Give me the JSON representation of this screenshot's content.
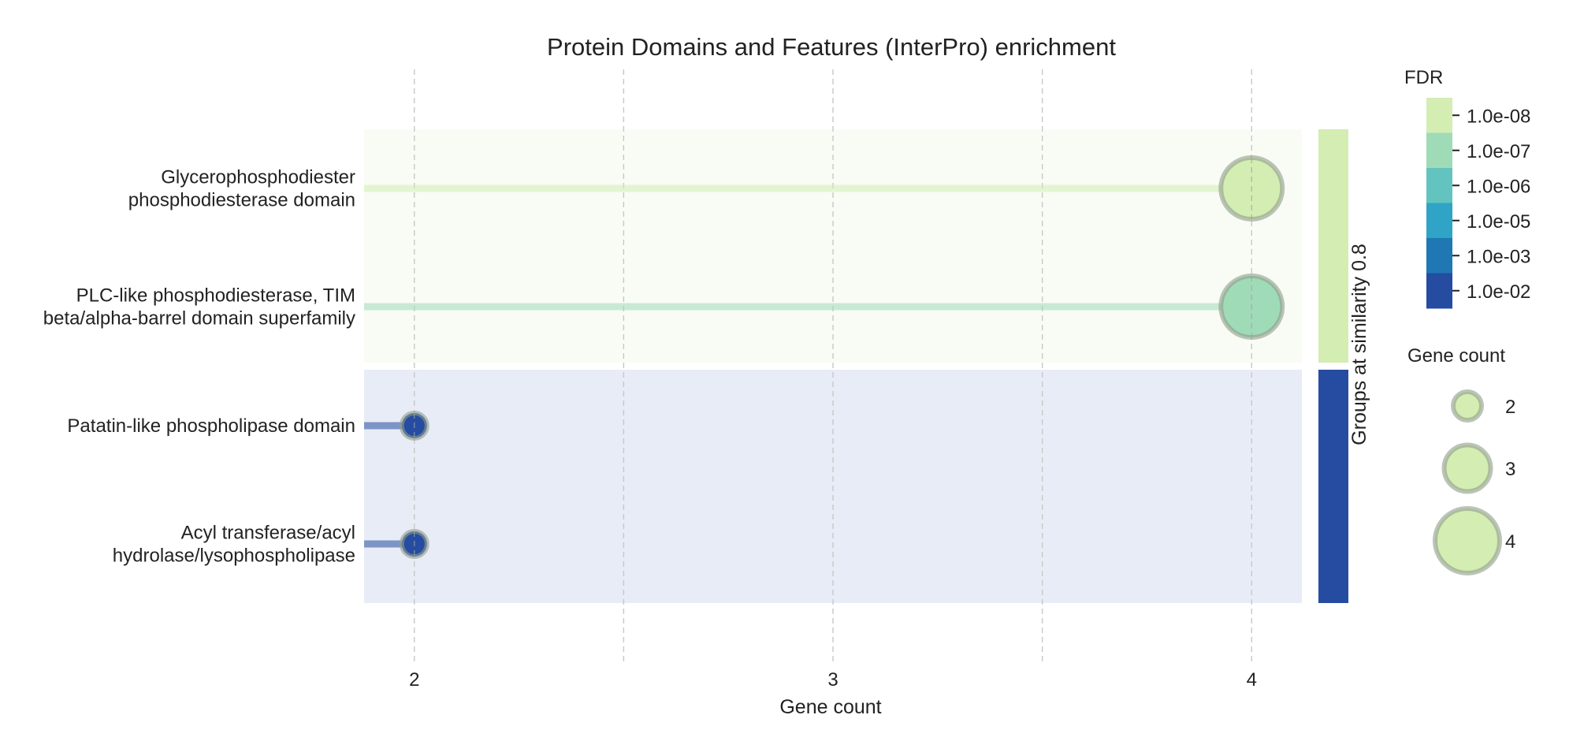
{
  "chart_data": {
    "type": "scatter",
    "title": "Protein Domains and Features (InterPro) enrichment",
    "xlabel": "Gene count",
    "ylabel": "",
    "xlim": [
      1.88,
      4.12
    ],
    "xticks": [
      2,
      3,
      4
    ],
    "grid": "x-dashed",
    "points": [
      {
        "term": "Glycerophosphodiester phosphodiesterase domain",
        "lines": [
          "Glycerophosphodiester",
          "phosphodiesterase domain"
        ],
        "gene_count": 4,
        "fdr": "1.0e-08",
        "color": "#d4edb3",
        "group": 1
      },
      {
        "term": "PLC-like phosphodiesterase, TIM beta/alpha-barrel domain superfamily",
        "lines": [
          "PLC-like phosphodiesterase, TIM",
          "beta/alpha-barrel domain superfamily"
        ],
        "gene_count": 4,
        "fdr": "1.0e-07",
        "color": "#a0dbb8",
        "group": 1
      },
      {
        "term": "Patatin-like phospholipase domain",
        "lines": [
          "Patatin-like phospholipase domain"
        ],
        "gene_count": 2,
        "fdr": "1.0e-02",
        "color": "#254ca1",
        "group": 2
      },
      {
        "term": "Acyl transferase/acyl hydrolase/lysophospholipase",
        "lines": [
          "Acyl transferase/acyl",
          "hydrolase/lysophospholipase"
        ],
        "gene_count": 2,
        "fdr": "1.0e-02",
        "color": "#254ca1",
        "group": 2
      }
    ],
    "groups": [
      {
        "id": 1,
        "color": "#d4edb3",
        "background": "#f9fcf5"
      },
      {
        "id": 2,
        "color": "#254ca1",
        "background": "#e8ecf6"
      }
    ],
    "group_axis_label": "Groups at similarity 0.8",
    "fdr_legend": {
      "title": "FDR",
      "entries": [
        {
          "label": "1.0e-08",
          "color": "#d4edb3"
        },
        {
          "label": "1.0e-07",
          "color": "#a0dbb8"
        },
        {
          "label": "1.0e-06",
          "color": "#63c3bf"
        },
        {
          "label": "1.0e-05",
          "color": "#2fa4c6"
        },
        {
          "label": "1.0e-03",
          "color": "#1f78b4"
        },
        {
          "label": "1.0e-02",
          "color": "#254ca1"
        }
      ]
    },
    "size_legend": {
      "title": "Gene count",
      "entries": [
        {
          "label": "2",
          "value": 2
        },
        {
          "label": "3",
          "value": 3
        },
        {
          "label": "4",
          "value": 4
        }
      ]
    }
  }
}
